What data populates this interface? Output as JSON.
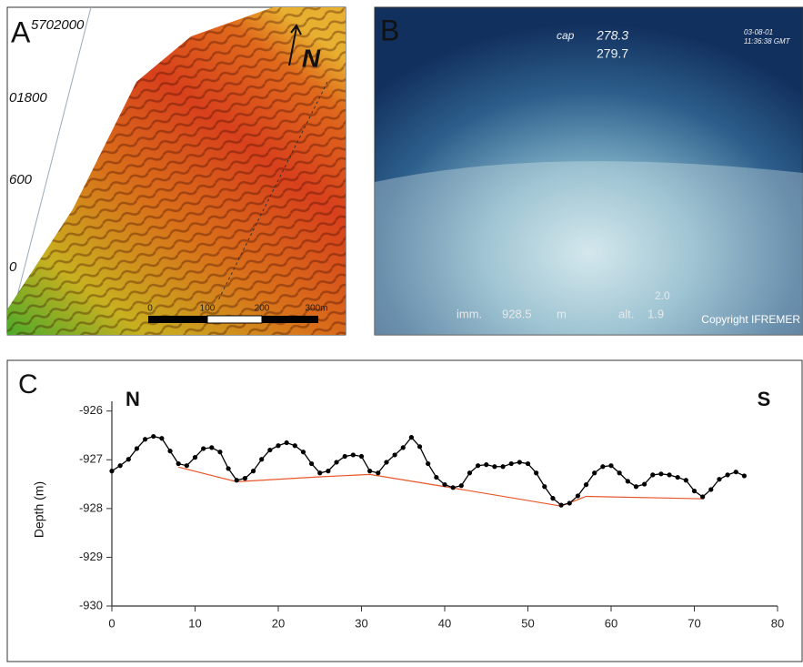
{
  "panel_a": {
    "label": "A",
    "northing_labels": [
      "5702000",
      "01800",
      "600",
      "0"
    ],
    "north": "N",
    "scale_labels": [
      "0",
      "100",
      "200",
      "300m"
    ]
  },
  "panel_b": {
    "label": "B",
    "cap_label": "cap",
    "cap_value_1": "278.3",
    "cap_value_2": "279.7",
    "date": "03-08-01",
    "time": "11:36:38 GMT",
    "imm_label": "imm.",
    "imm_value": "928.5",
    "imm_unit": "m",
    "alt_label": "alt.",
    "alt_value": "1.9",
    "alt_value_2": "2.0",
    "copyright": "Copyright IFREMER"
  },
  "chart_data": {
    "type": "line",
    "panel_label": "C",
    "annotations": [
      "N",
      "S"
    ],
    "y_label": "Depth (m)",
    "xlim": [
      0,
      80
    ],
    "xticks": [
      0,
      10,
      20,
      30,
      40,
      50,
      60,
      70,
      80
    ],
    "ylim": [
      -930,
      -925.8
    ],
    "yticks": [
      -930,
      -929,
      -928,
      -927,
      -926
    ],
    "series": [
      {
        "color": "#000000",
        "markers": true,
        "x": [
          0,
          1,
          2,
          3,
          4,
          5,
          6,
          7,
          8,
          9,
          10,
          11,
          12,
          13,
          14,
          15,
          16,
          17,
          18,
          19,
          20,
          21,
          22,
          23,
          24,
          25,
          26,
          27,
          28,
          29,
          30,
          31,
          32,
          33,
          34,
          35,
          36,
          37,
          38,
          39,
          40,
          41,
          42,
          43,
          44,
          45,
          46,
          47,
          48,
          49,
          50,
          51,
          52,
          53,
          54,
          55,
          56,
          57,
          58,
          59,
          60,
          61,
          62,
          63,
          64,
          65,
          66,
          67,
          68,
          69,
          70,
          71,
          72,
          73,
          74,
          75,
          76
        ],
        "values": [
          -927.23,
          -927.12,
          -926.99,
          -926.77,
          -926.58,
          -926.52,
          -926.56,
          -926.82,
          -927.08,
          -927.12,
          -926.95,
          -926.77,
          -926.75,
          -926.84,
          -927.18,
          -927.42,
          -927.38,
          -927.23,
          -926.99,
          -926.8,
          -926.71,
          -926.65,
          -926.71,
          -926.84,
          -927.08,
          -927.27,
          -927.23,
          -927.05,
          -926.93,
          -926.9,
          -926.93,
          -927.23,
          -927.27,
          -927.05,
          -926.9,
          -926.75,
          -926.54,
          -926.73,
          -927.08,
          -927.36,
          -927.51,
          -927.57,
          -927.53,
          -927.27,
          -927.12,
          -927.1,
          -927.14,
          -927.14,
          -927.08,
          -927.05,
          -927.08,
          -927.27,
          -927.55,
          -927.79,
          -927.93,
          -927.89,
          -927.74,
          -927.51,
          -927.27,
          -927.14,
          -927.12,
          -927.27,
          -927.44,
          -927.55,
          -927.5,
          -927.31,
          -927.29,
          -927.31,
          -927.36,
          -927.42,
          -927.64,
          -927.76,
          -927.61,
          -927.4,
          -927.31,
          -927.25,
          -927.33
        ]
      },
      {
        "color": "#e8562a",
        "markers": false,
        "x": [
          8,
          15,
          25,
          31,
          40,
          54,
          57,
          71
        ],
        "values": [
          -927.15,
          -927.45,
          -927.35,
          -927.3,
          -927.55,
          -927.95,
          -927.75,
          -927.8
        ]
      }
    ]
  }
}
